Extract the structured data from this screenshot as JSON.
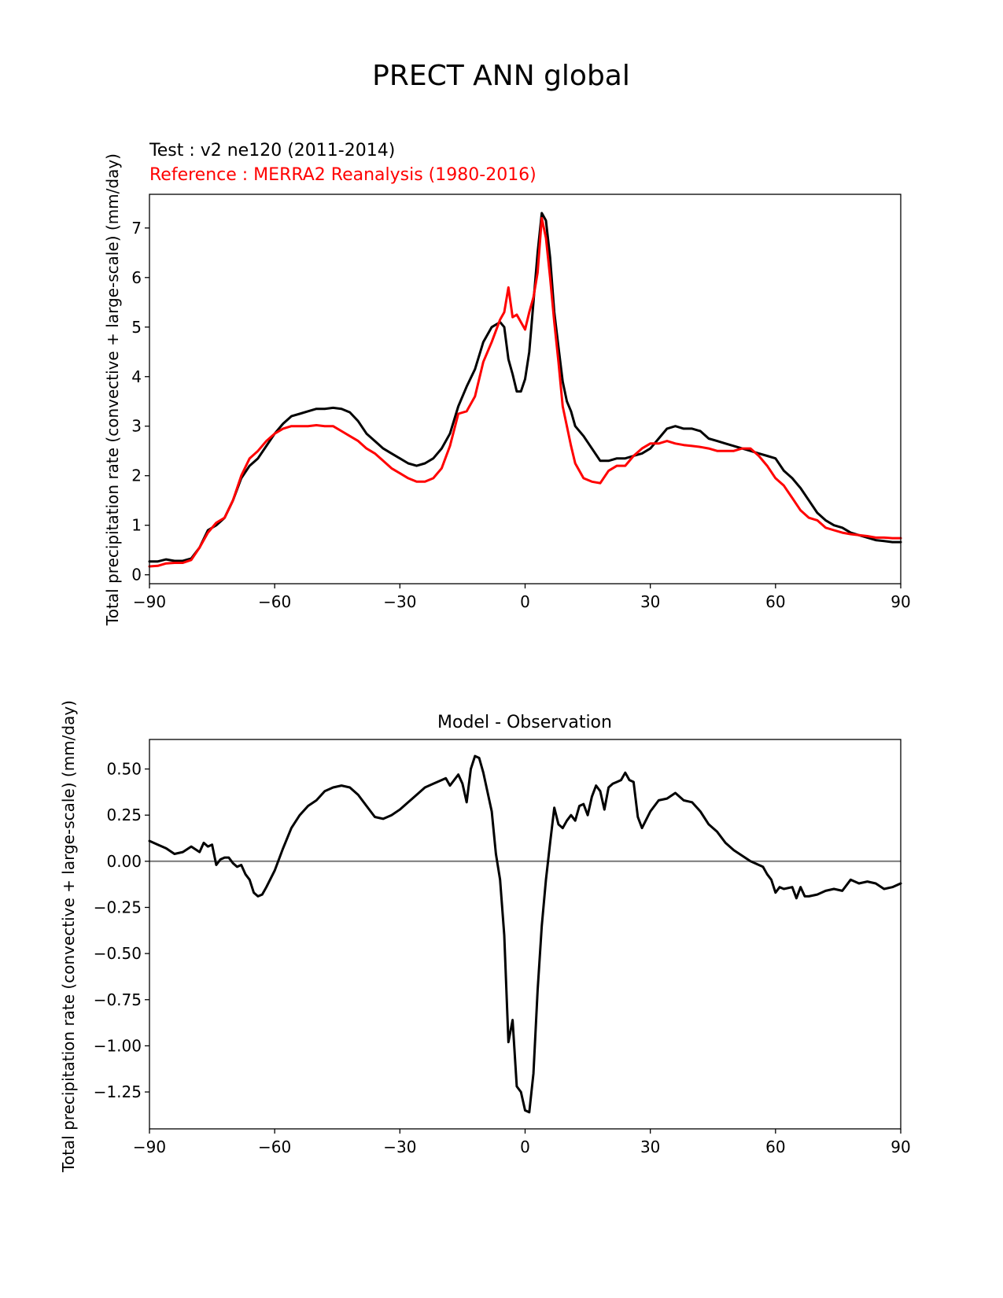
{
  "figure_title": "PRECT ANN global",
  "chart_data": [
    {
      "type": "line",
      "title": "",
      "test_label": "Test : v2 ne120 (2011-2014)",
      "ref_label": "Reference : MERRA2 Reanalysis (1980-2016)",
      "xlabel": "",
      "ylabel": "Total precipitation rate (convective + large-scale) (mm/day)",
      "xlim": [
        -90,
        90
      ],
      "ylim": [
        -0.18,
        7.68
      ],
      "xticks": [
        -90,
        -60,
        -30,
        0,
        30,
        60,
        90
      ],
      "xtick_labels": [
        "−90",
        "−60",
        "−30",
        "0",
        "30",
        "60",
        "90"
      ],
      "yticks": [
        0,
        1,
        2,
        3,
        4,
        5,
        6,
        7
      ],
      "ytick_labels": [
        "0",
        "1",
        "2",
        "3",
        "4",
        "5",
        "6",
        "7"
      ],
      "series": [
        {
          "name": "Test : v2 ne120 (2011-2014)",
          "color": "#000000",
          "x": [
            -90,
            -88,
            -86,
            -84,
            -82,
            -80,
            -78,
            -76,
            -74,
            -72,
            -70,
            -68,
            -66,
            -64,
            -62,
            -60,
            -58,
            -56,
            -54,
            -52,
            -50,
            -48,
            -46,
            -44,
            -42,
            -40,
            -38,
            -36,
            -34,
            -32,
            -30,
            -28,
            -26,
            -24,
            -22,
            -20,
            -18,
            -16,
            -14,
            -12,
            -10,
            -8,
            -6,
            -5,
            -4,
            -3,
            -2,
            -1,
            0,
            1,
            2,
            3,
            4,
            5,
            6,
            7,
            8,
            9,
            10,
            11,
            12,
            14,
            16,
            18,
            20,
            22,
            24,
            26,
            28,
            30,
            32,
            34,
            36,
            38,
            40,
            42,
            44,
            46,
            48,
            50,
            52,
            54,
            56,
            58,
            60,
            62,
            64,
            66,
            68,
            70,
            72,
            74,
            76,
            78,
            80,
            82,
            84,
            86,
            88,
            90
          ],
          "y": [
            0.27,
            0.27,
            0.31,
            0.28,
            0.28,
            0.33,
            0.55,
            0.9,
            1.0,
            1.15,
            1.5,
            1.95,
            2.2,
            2.35,
            2.6,
            2.85,
            3.05,
            3.2,
            3.25,
            3.3,
            3.35,
            3.35,
            3.37,
            3.35,
            3.28,
            3.1,
            2.85,
            2.7,
            2.55,
            2.45,
            2.35,
            2.25,
            2.2,
            2.25,
            2.35,
            2.55,
            2.85,
            3.4,
            3.8,
            4.15,
            4.7,
            5.0,
            5.1,
            5.0,
            4.35,
            4.05,
            3.7,
            3.7,
            3.95,
            4.5,
            5.5,
            6.5,
            7.3,
            7.15,
            6.4,
            5.3,
            4.6,
            3.9,
            3.5,
            3.3,
            3.0,
            2.8,
            2.55,
            2.3,
            2.3,
            2.35,
            2.35,
            2.4,
            2.45,
            2.55,
            2.75,
            2.95,
            3.0,
            2.95,
            2.95,
            2.9,
            2.75,
            2.7,
            2.65,
            2.6,
            2.55,
            2.5,
            2.45,
            2.4,
            2.35,
            2.1,
            1.95,
            1.75,
            1.5,
            1.25,
            1.1,
            1.0,
            0.95,
            0.85,
            0.8,
            0.75,
            0.7,
            0.68,
            0.66,
            0.66
          ]
        },
        {
          "name": "Reference : MERRA2 Reanalysis (1980-2016)",
          "color": "#ff0000",
          "x": [
            -90,
            -88,
            -86,
            -84,
            -82,
            -80,
            -78,
            -76,
            -74,
            -72,
            -70,
            -68,
            -66,
            -64,
            -62,
            -60,
            -58,
            -56,
            -54,
            -52,
            -50,
            -48,
            -46,
            -44,
            -42,
            -40,
            -38,
            -36,
            -34,
            -32,
            -30,
            -28,
            -26,
            -24,
            -22,
            -20,
            -18,
            -16,
            -14,
            -12,
            -10,
            -8,
            -6,
            -5,
            -4,
            -3,
            -2,
            -1,
            0,
            1,
            2,
            3,
            4,
            5,
            6,
            7,
            8,
            9,
            10,
            11,
            12,
            14,
            16,
            18,
            20,
            22,
            24,
            26,
            28,
            30,
            32,
            34,
            36,
            38,
            40,
            42,
            44,
            46,
            48,
            50,
            52,
            54,
            56,
            58,
            60,
            62,
            64,
            66,
            68,
            70,
            72,
            74,
            76,
            78,
            80,
            82,
            84,
            86,
            88,
            90
          ],
          "y": [
            0.17,
            0.18,
            0.23,
            0.24,
            0.24,
            0.3,
            0.55,
            0.85,
            1.05,
            1.15,
            1.5,
            2.0,
            2.35,
            2.5,
            2.7,
            2.85,
            2.95,
            3.0,
            3.0,
            3.0,
            3.02,
            3.0,
            3.0,
            2.9,
            2.8,
            2.7,
            2.55,
            2.45,
            2.3,
            2.15,
            2.05,
            1.95,
            1.88,
            1.88,
            1.95,
            2.15,
            2.6,
            3.25,
            3.3,
            3.6,
            4.3,
            4.7,
            5.15,
            5.3,
            5.8,
            5.2,
            5.25,
            5.1,
            4.95,
            5.3,
            5.6,
            6.1,
            7.2,
            6.8,
            6.0,
            5.1,
            4.3,
            3.4,
            3.0,
            2.6,
            2.25,
            1.95,
            1.88,
            1.85,
            2.1,
            2.2,
            2.2,
            2.4,
            2.55,
            2.65,
            2.65,
            2.7,
            2.65,
            2.62,
            2.6,
            2.58,
            2.55,
            2.5,
            2.5,
            2.5,
            2.55,
            2.55,
            2.4,
            2.2,
            1.95,
            1.8,
            1.55,
            1.3,
            1.15,
            1.1,
            0.95,
            0.9,
            0.85,
            0.82,
            0.8,
            0.78,
            0.75,
            0.75,
            0.74,
            0.74
          ]
        }
      ]
    },
    {
      "type": "line",
      "title": "Model - Observation",
      "xlabel": "",
      "ylabel": "Total precipitation rate (convective + large-scale) (mm/day)",
      "xlim": [
        -90,
        90
      ],
      "ylim": [
        -1.45,
        0.66
      ],
      "xticks": [
        -90,
        -60,
        -30,
        0,
        30,
        60,
        90
      ],
      "xtick_labels": [
        "−90",
        "−60",
        "−30",
        "0",
        "30",
        "60",
        "90"
      ],
      "yticks": [
        0.5,
        0.25,
        0,
        -0.25,
        -0.5,
        -0.75,
        -1.0,
        -1.25
      ],
      "ytick_labels": [
        "0.50",
        "0.25",
        "0.00",
        "−0.25",
        "−0.50",
        "−0.75",
        "−1.00",
        "−1.25"
      ],
      "zero_line": 0,
      "series": [
        {
          "name": "Model - Observation",
          "color": "#000000",
          "x": [
            -90,
            -88,
            -86,
            -84,
            -82,
            -80,
            -78,
            -77,
            -76,
            -75,
            -74,
            -73,
            -72,
            -71,
            -70,
            -69,
            -68,
            -67,
            -66,
            -65,
            -64,
            -63,
            -62,
            -60,
            -58,
            -56,
            -54,
            -52,
            -50,
            -48,
            -46,
            -44,
            -42,
            -40,
            -38,
            -36,
            -34,
            -32,
            -30,
            -28,
            -26,
            -24,
            -22,
            -20,
            -19,
            -18,
            -17,
            -16,
            -15,
            -14,
            -13,
            -12,
            -11,
            -10,
            -8,
            -7,
            -6,
            -5,
            -4,
            -3,
            -2,
            -1,
            0,
            1,
            2,
            3,
            4,
            5,
            6,
            7,
            8,
            9,
            10,
            11,
            12,
            13,
            14,
            15,
            16,
            17,
            18,
            19,
            20,
            21,
            22,
            23,
            24,
            25,
            26,
            27,
            28,
            30,
            32,
            34,
            36,
            38,
            40,
            42,
            44,
            46,
            48,
            50,
            52,
            54,
            56,
            57,
            58,
            59,
            60,
            61,
            62,
            64,
            65,
            66,
            67,
            68,
            70,
            72,
            74,
            76,
            78,
            80,
            82,
            84,
            86,
            88,
            90
          ],
          "y": [
            0.11,
            0.09,
            0.07,
            0.04,
            0.05,
            0.08,
            0.05,
            0.1,
            0.08,
            0.09,
            -0.02,
            0.01,
            0.02,
            0.02,
            -0.01,
            -0.03,
            -0.02,
            -0.07,
            -0.1,
            -0.17,
            -0.19,
            -0.18,
            -0.14,
            -0.05,
            0.07,
            0.18,
            0.25,
            0.3,
            0.33,
            0.38,
            0.4,
            0.41,
            0.4,
            0.36,
            0.3,
            0.24,
            0.23,
            0.25,
            0.28,
            0.32,
            0.36,
            0.4,
            0.42,
            0.44,
            0.45,
            0.41,
            0.44,
            0.47,
            0.42,
            0.32,
            0.5,
            0.57,
            0.56,
            0.48,
            0.27,
            0.04,
            -0.1,
            -0.4,
            -0.98,
            -0.86,
            -1.22,
            -1.25,
            -1.35,
            -1.36,
            -1.15,
            -0.7,
            -0.35,
            -0.1,
            0.1,
            0.29,
            0.2,
            0.18,
            0.22,
            0.25,
            0.22,
            0.3,
            0.31,
            0.25,
            0.35,
            0.41,
            0.38,
            0.28,
            0.4,
            0.42,
            0.43,
            0.44,
            0.48,
            0.44,
            0.43,
            0.24,
            0.18,
            0.27,
            0.33,
            0.34,
            0.37,
            0.33,
            0.32,
            0.27,
            0.2,
            0.16,
            0.1,
            0.06,
            0.03,
            0.0,
            -0.02,
            -0.03,
            -0.07,
            -0.1,
            -0.17,
            -0.14,
            -0.15,
            -0.14,
            -0.2,
            -0.14,
            -0.19,
            -0.19,
            -0.18,
            -0.16,
            -0.15,
            -0.16,
            -0.1,
            -0.12,
            -0.11,
            -0.12,
            -0.15,
            -0.14,
            -0.12
          ]
        }
      ]
    }
  ]
}
